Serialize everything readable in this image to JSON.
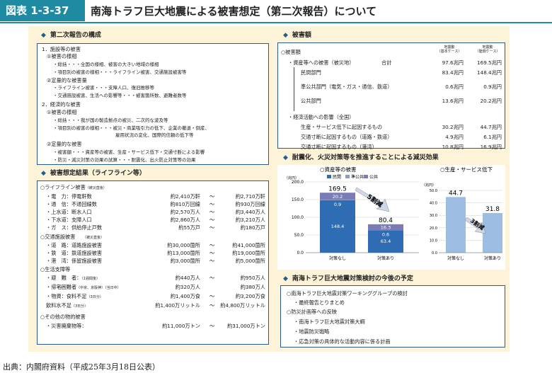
{
  "header": {
    "fig_no": "図表 1-3-37",
    "title": "南海トラフ巨大地震による被害想定（第二次報告）について"
  },
  "source": "出典：内閣府資料（平成25年3月18日公表）",
  "composition": {
    "title": "第二次報告の構成",
    "lines": [
      "1．施設等の被害",
      "①被害の様相",
      "・総括・・・全国の様相、被害の大きい地域の様相",
      "・項目別の被害の様相・・・ライフライン被害、交通施設被害等",
      "②定量的な被害量",
      "・ライフライン被害・・・支障人口、復旧推移等",
      "・交通施設被害、生活への影響等・・・被害箇所数、避難者数等",
      "2．経済的な被害",
      "①被害の様相",
      "・総括・・・我が国の製造拠点の被災、二次的な波及等",
      "・項目別の被害の様相・・・被災・商業吸引力の低下、企業の撤退・倒産、",
      "雇用状況の変化、国際的信頼の低下等",
      "②定量的な被害",
      "・被害額・・・資産等の被害、生産・サービス低下・交通寸断による影響",
      "・防災・減災対策の効果の試算・・・耐震化、出火防止対策等の効果"
    ]
  },
  "lifeline": {
    "title": "被害想定結果（ライフライン等）",
    "sec1": "○ライフライン被害",
    "sec1_note": "（被災直後）",
    "rows1": [
      {
        "label": "・電　力：停電軒数",
        "a": "約2,410万軒",
        "b": "約2,710万軒"
      },
      {
        "label": "・通　信：不通回線数",
        "a": "約810万回線",
        "b": "約930万回線"
      },
      {
        "label": "・上水道：断水人口",
        "a": "約2,570万人",
        "b": "約3,440万人"
      },
      {
        "label": "・下水道：支障人口",
        "a": "約2,860万人",
        "b": "約3,210万人"
      },
      {
        "label": "・ガ　ス：供給停止戸数",
        "a": "約55万戸",
        "b": "約180万戸"
      }
    ],
    "sec2": "○交通施設被害",
    "sec2_note": "（被災直後）",
    "rows2": [
      {
        "label": "・道　路：道路施設被害",
        "a": "約30,000箇所",
        "b": "約41,000箇所"
      },
      {
        "label": "・鉄　道：鉄道施設被害",
        "a": "約13,000箇所",
        "b": "約19,000箇所"
      },
      {
        "label": "・港　湾：係留施設被害",
        "a": "約3,000箇所",
        "b": "約5,000箇所"
      }
    ],
    "sec3": "○生活支障等",
    "rows3": [
      {
        "label": "・避　難　者：",
        "note": "（1週間後）",
        "a": "約440万人",
        "b": "約950万人"
      },
      {
        "label": "・帰宅困難者",
        "note": "（中京、京阪神）（当日中）",
        "a": "約320万人",
        "b": "約380万人"
      },
      {
        "label": "・物資：食料不足",
        "note": "（3日分）",
        "a": "約1,400万食",
        "b": "約3,200万食"
      },
      {
        "label": "飲料水不足",
        "note": "（3日分）",
        "a": "約1,400万リットル",
        "b": "約4,800万リットル"
      }
    ],
    "sec4": "○その他の物的被害",
    "rows4": [
      {
        "label": "・災害廃棄物等：",
        "a": "約11,000万トン",
        "b": "約31,000万トン"
      }
    ],
    "tilde": "～"
  },
  "damage": {
    "title": "被害額",
    "col1": "地震動\n（基本ケース）",
    "col1a": "地震動",
    "col1b": "（基本ケース）",
    "col2a": "地震動",
    "col2b": "（陸側ケース）",
    "lead": "○被害額",
    "asset": "・資産等への被害（被災地）",
    "total_label": "合計",
    "total_a": "97.6兆円",
    "total_b": "169.5兆円",
    "rows": [
      {
        "label": "民間部門",
        "a": "83.4兆円",
        "b": "148.4兆円"
      },
      {
        "label": "準公共部門（電気・ガス・通信、鉄道）",
        "a": "0.6兆円",
        "b": "0.9兆円"
      },
      {
        "label": "公共部門",
        "a": "13.6兆円",
        "b": "20.2兆円"
      }
    ],
    "econ": "・経済活動への影響（全国）",
    "econ_rows": [
      {
        "label": "生産・サービス低下に起因するもの",
        "a": "30.2兆円",
        "b": "44.7兆円"
      },
      {
        "label": "交通寸断に起因するもの（道路・鉄道）",
        "a": "4.9兆円",
        "b": "6.1兆円"
      },
      {
        "label": "交通寸断に起因するもの（港湾）",
        "a": "10.8兆円",
        "b": "16.9兆円"
      }
    ]
  },
  "measures": {
    "title": "耐震化、火災対策等を推進することによる減災効果",
    "chart1_title": "○資産等の被害",
    "chart2_title": "○生産・サービス低下",
    "arrow1": "5割減",
    "arrow2": "3割減"
  },
  "chart_data": [
    {
      "type": "bar",
      "title": "○資産等の被害",
      "ylabel": "（兆円）",
      "ylim": [
        0,
        200
      ],
      "yticks": [
        "0.0",
        "50.0",
        "100.0",
        "150.0",
        "200.0"
      ],
      "categories": [
        "対策なし",
        "対策あり"
      ],
      "totals": [
        "169.5",
        "80.4"
      ],
      "series": [
        {
          "name": "民間",
          "color": "#2e6db4",
          "values": [
            148.4,
            63.4
          ],
          "labels": [
            "148.4",
            "63.4"
          ]
        },
        {
          "name": "準公共",
          "color": "#8b9dc3",
          "values": [
            0.9,
            0.6
          ],
          "labels": [
            "0.9",
            "0.6"
          ]
        },
        {
          "name": "公共",
          "color": "#7b7bb5",
          "values": [
            20.2,
            16.3
          ],
          "labels": [
            "20.2",
            "16.3"
          ]
        }
      ]
    },
    {
      "type": "bar",
      "title": "○生産・サービス低下",
      "ylabel": "（兆円）",
      "ylim": [
        0,
        50
      ],
      "yticks": [
        "0.0",
        "10.0",
        "20.0",
        "30.0",
        "40.0",
        "50.0"
      ],
      "categories": [
        "対策なし",
        "対策あり"
      ],
      "values": [
        44.7,
        31.8
      ],
      "labels": [
        "44.7",
        "31.8"
      ],
      "color": "#9dbde3"
    }
  ],
  "future": {
    "title": "南海トラフ巨大地震対策検討の今後の予定",
    "lines": [
      "○南海トラフ巨大地震対策ワーキンググループの検討",
      "・最終報告とりまとめ",
      "○防災計画等への反映",
      "・南海トラフ巨大地震対策大綱",
      "・地震防災戦略",
      "・応急対策の具体的な活動内容に係る計画"
    ]
  },
  "colors": {
    "accent": "#1f8ba3",
    "frame": "#fdf3d8",
    "box_border": "#2a5d8a"
  }
}
